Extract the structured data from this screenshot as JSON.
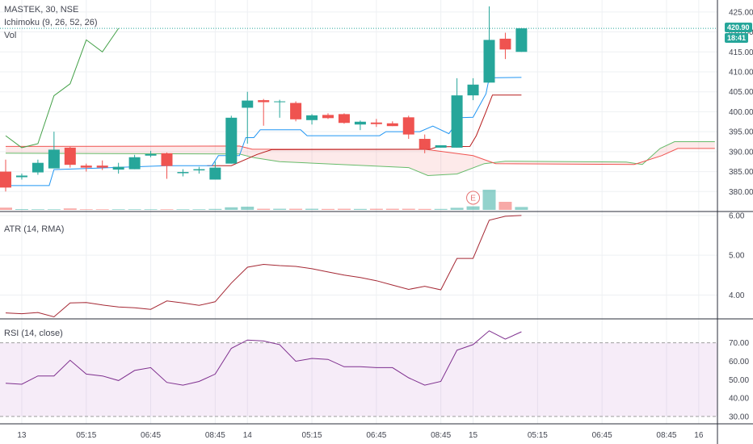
{
  "header": {
    "symbol": "MASTEK, 30, NSE",
    "ichimoku": "Ichimoku (9, 26, 52, 26)",
    "vol": "Vol"
  },
  "atr_label": "ATR (14, RMA)",
  "rsi_label": "RSI (14, close)",
  "price_tags": {
    "last": "420.90",
    "countdown": "18:41"
  },
  "earnings_marker": "E",
  "colors": {
    "up": "#26a69a",
    "down": "#ef5350",
    "tenkan": "#2196f3",
    "kijun": "#b71c1c",
    "lagging": "#43a047",
    "spanA": "#66bb6a",
    "spanB": "#ef5350",
    "cloud": "rgba(239,83,80,0.12)",
    "atr": "#a52834",
    "rsi": "#7e2f8e",
    "rsi_bg": "rgba(156,39,176,0.09)",
    "grid": "#eef0f3",
    "axis": "#434651"
  },
  "chart_data": [
    {
      "type": "candlestick",
      "title": "MASTEK, 30, NSE",
      "ylim": [
        375,
        428
      ],
      "y_ticks": [
        380,
        385,
        390,
        395,
        400,
        405,
        410,
        415,
        420,
        425
      ],
      "last_price": 420.9,
      "ohlc": [
        [
          385,
          388,
          380,
          381
        ],
        [
          383.6,
          384.5,
          383,
          384
        ],
        [
          384.8,
          388,
          384.2,
          387.2
        ],
        [
          385.8,
          395,
          385.8,
          390.5
        ],
        [
          391,
          391.2,
          386,
          386.7
        ],
        [
          386.5,
          387,
          385,
          386
        ],
        [
          386.5,
          387.8,
          385.4,
          386
        ],
        [
          385.5,
          387.2,
          384.5,
          386.2
        ],
        [
          385.6,
          389.2,
          385.6,
          388.6
        ],
        [
          389,
          390.2,
          388.6,
          389.4
        ],
        [
          389.6,
          389.8,
          383.2,
          386.4
        ],
        [
          384.6,
          385.6,
          383.8,
          384.9
        ],
        [
          385.3,
          386.2,
          384.5,
          385.6
        ],
        [
          383,
          387.5,
          383,
          386
        ],
        [
          387,
          399,
          387,
          398.5
        ],
        [
          401,
          405,
          392,
          402.8
        ],
        [
          402.9,
          403.2,
          396.5,
          402.4
        ],
        [
          402.5,
          403,
          398.5,
          402.6
        ],
        [
          402.2,
          402.6,
          397.6,
          398.1
        ],
        [
          397.9,
          399.4,
          396.8,
          399.1
        ],
        [
          399.2,
          399.6,
          398.2,
          398.4
        ],
        [
          399.4,
          399.6,
          397,
          397.2
        ],
        [
          396.8,
          397.8,
          395.4,
          397.5
        ],
        [
          397.3,
          398.2,
          396.2,
          396.9
        ],
        [
          397.1,
          397.6,
          396.4,
          396.4
        ],
        [
          398.6,
          399,
          393.2,
          394.3
        ],
        [
          393.2,
          394.3,
          389.6,
          390.6
        ],
        [
          391,
          391.6,
          391,
          391.6
        ],
        [
          391,
          408.4,
          391,
          404.1
        ],
        [
          404.1,
          408.4,
          402.9,
          406.8
        ],
        [
          407.3,
          426.4,
          407.3,
          418
        ],
        [
          418.3,
          419.8,
          413.2,
          415.6
        ],
        [
          415,
          421,
          415,
          420.9
        ]
      ],
      "tenkan": [
        {
          "x": 0,
          "y": 381.5
        },
        {
          "x": 2.7,
          "y": 381.5
        },
        {
          "x": 3,
          "y": 385.5
        },
        {
          "x": 10,
          "y": 386.5
        },
        {
          "x": 12.8,
          "y": 386.5
        },
        {
          "x": 13.2,
          "y": 389
        },
        {
          "x": 14.5,
          "y": 389
        },
        {
          "x": 14.9,
          "y": 393.5
        },
        {
          "x": 15.4,
          "y": 393.5
        },
        {
          "x": 15.8,
          "y": 395.5
        },
        {
          "x": 18.3,
          "y": 395.5
        },
        {
          "x": 18.7,
          "y": 394
        },
        {
          "x": 23.2,
          "y": 394
        },
        {
          "x": 23.6,
          "y": 395
        },
        {
          "x": 25.7,
          "y": 395
        },
        {
          "x": 26.5,
          "y": 396.4
        },
        {
          "x": 27.5,
          "y": 394.5
        },
        {
          "x": 28.2,
          "y": 398.5
        },
        {
          "x": 29,
          "y": 398.6
        },
        {
          "x": 29.8,
          "y": 404.5
        },
        {
          "x": 30,
          "y": 408.5
        },
        {
          "x": 32,
          "y": 408.6
        }
      ],
      "kijun": [
        {
          "x": 12.5,
          "y": 386.5
        },
        {
          "x": 14,
          "y": 386.5
        },
        {
          "x": 15.6,
          "y": 389.3
        },
        {
          "x": 16.5,
          "y": 390.5
        },
        {
          "x": 26.3,
          "y": 390.6
        },
        {
          "x": 26.8,
          "y": 391.2
        },
        {
          "x": 28.8,
          "y": 391.3
        },
        {
          "x": 29.2,
          "y": 394
        },
        {
          "x": 29.8,
          "y": 400
        },
        {
          "x": 30.2,
          "y": 404.2
        },
        {
          "x": 32,
          "y": 404.2
        }
      ],
      "lagging": [
        {
          "x": 0,
          "y": 394
        },
        {
          "x": 1,
          "y": 391
        },
        {
          "x": 2,
          "y": 392
        },
        {
          "x": 3,
          "y": 404
        },
        {
          "x": 4,
          "y": 407
        },
        {
          "x": 5,
          "y": 418
        },
        {
          "x": 6,
          "y": 415
        },
        {
          "x": 7,
          "y": 420.9
        }
      ],
      "span_a": [
        {
          "x": 0,
          "y": 389.6
        },
        {
          "x": 14.5,
          "y": 389.4
        },
        {
          "x": 15.4,
          "y": 388.5
        },
        {
          "x": 17,
          "y": 387.5
        },
        {
          "x": 25,
          "y": 386
        },
        {
          "x": 26.2,
          "y": 384
        },
        {
          "x": 28,
          "y": 384.4
        },
        {
          "x": 29.7,
          "y": 387
        },
        {
          "x": 31,
          "y": 387.6
        },
        {
          "x": 38.5,
          "y": 387.4
        },
        {
          "x": 39.5,
          "y": 386.8
        },
        {
          "x": 40.6,
          "y": 390.8
        },
        {
          "x": 41.5,
          "y": 392.5
        },
        {
          "x": 44,
          "y": 392.5
        }
      ],
      "span_b": [
        {
          "x": 0,
          "y": 391.3
        },
        {
          "x": 14.5,
          "y": 391.4
        },
        {
          "x": 15.3,
          "y": 390.6
        },
        {
          "x": 26,
          "y": 390.6
        },
        {
          "x": 29,
          "y": 389
        },
        {
          "x": 30.4,
          "y": 387
        },
        {
          "x": 39,
          "y": 386.8
        },
        {
          "x": 40.7,
          "y": 389
        },
        {
          "x": 41.7,
          "y": 390.8
        },
        {
          "x": 44,
          "y": 390.8
        }
      ],
      "volume": [
        14,
        5,
        4,
        4,
        9,
        4,
        4,
        4,
        4,
        4,
        4,
        4,
        4,
        6,
        16,
        20,
        7,
        7,
        7,
        7,
        6,
        7,
        6,
        7,
        7,
        7,
        6,
        6,
        13,
        22,
        125,
        50,
        18
      ]
    },
    {
      "type": "line",
      "title": "ATR (14, RMA)",
      "ylim": [
        3.4,
        6.1
      ],
      "y_ticks": [
        4,
        5,
        6
      ],
      "tick_labels": [
        "4.00",
        "5.00",
        "6.00"
      ],
      "values": [
        3.55,
        3.53,
        3.56,
        3.45,
        3.8,
        3.81,
        3.75,
        3.7,
        3.68,
        3.64,
        3.85,
        3.8,
        3.74,
        3.83,
        4.3,
        4.7,
        4.77,
        4.74,
        4.72,
        4.66,
        4.58,
        4.5,
        4.44,
        4.36,
        4.25,
        4.14,
        4.22,
        4.13,
        4.92,
        4.92,
        5.88,
        5.98,
        6.0
      ]
    },
    {
      "type": "line",
      "title": "RSI (14, close)",
      "ylim": [
        26,
        83
      ],
      "y_ticks": [
        30,
        40,
        50,
        60,
        70
      ],
      "tick_labels": [
        "30.00",
        "40.00",
        "50.00",
        "60.00",
        "70.00"
      ],
      "band": [
        30,
        70
      ],
      "values": [
        48,
        47.5,
        52,
        52,
        60.5,
        53,
        52,
        49.5,
        55,
        56.5,
        48.5,
        47,
        49,
        53,
        67,
        71.5,
        71,
        69,
        60,
        61.5,
        61,
        57,
        57,
        56.5,
        56.5,
        51,
        47,
        49,
        66,
        69,
        76.5,
        72,
        76
      ]
    }
  ],
  "x_axis_labels": [
    "13",
    "05:15",
    "06:45",
    "08:45",
    "14",
    "05:15",
    "06:45",
    "08:45",
    "15",
    "05:15",
    "06:45",
    "08:45",
    "16"
  ],
  "x_axis_positions": [
    1,
    5,
    9,
    13,
    15,
    19,
    23,
    27,
    29,
    33,
    37,
    41,
    43
  ]
}
